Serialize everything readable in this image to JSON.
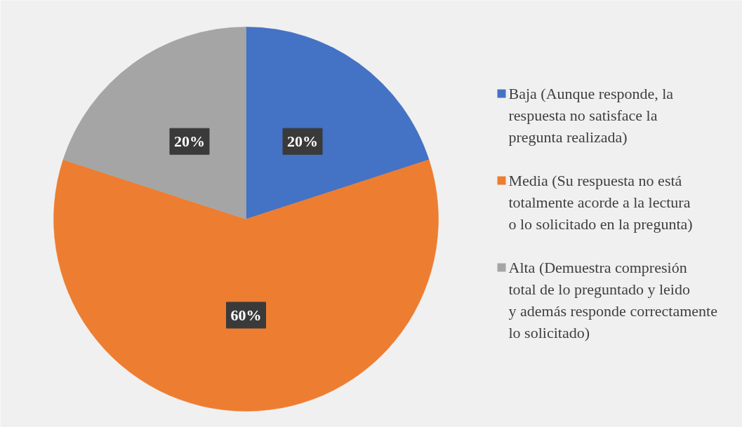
{
  "chart_data": {
    "type": "pie",
    "categories": [
      "Baja (Aunque responde, la respuesta no satisface la pregunta realizada)",
      "Media (Su respuesta no está totalmente acorde a la lectura o lo solicitado en la pregunta)",
      "Alta (Demuestra compresión total de lo preguntado y leido y además responde correctamente lo solicitado)"
    ],
    "values": [
      20,
      60,
      20
    ],
    "colors": [
      "#4472c4",
      "#ed7d31",
      "#a5a5a5"
    ],
    "value_labels": [
      "20%",
      "60%",
      "20%"
    ],
    "legend": "right"
  }
}
